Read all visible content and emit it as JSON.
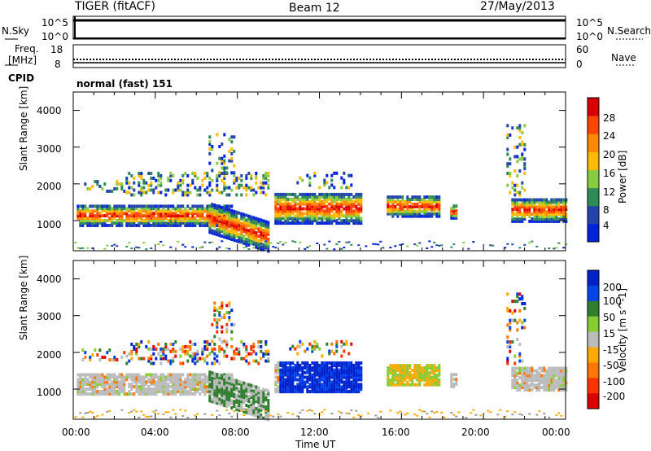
{
  "header": {
    "title": "TIGER (fitACF)",
    "beam": "Beam 12",
    "date": "27/May/2013"
  },
  "top_panels": {
    "nsky": {
      "label": "N.Sky",
      "ticks": [
        "10^5",
        "10^0"
      ],
      "right_label": "N.Search",
      "right_ticks": [
        "10^5",
        "10^0"
      ]
    },
    "freq": {
      "label_line1": "Freq.",
      "label_line2": "[MHz]",
      "ticks": [
        "18",
        "8"
      ],
      "right_label": "Nave",
      "right_ticks": [
        "60",
        "0"
      ]
    },
    "cpid": {
      "label": "CPID",
      "value": "normal (fast) 151"
    }
  },
  "colors": {
    "power": [
      "#0022dd",
      "#2244aa",
      "#2e8b57",
      "#88cc44",
      "#ffbb00",
      "#ff8800",
      "#ff4400",
      "#dd0000"
    ],
    "velocity": [
      "#0022cc",
      "#0044ee",
      "#2f7f2f",
      "#88cc33",
      "#bbbbbb",
      "#ffaa00",
      "#ff7700",
      "#ff3300",
      "#dd0000"
    ],
    "ground": "#999999"
  },
  "chart_data": [
    {
      "type": "heatmap",
      "name": "Power",
      "xlabel": "Time UT",
      "ylabel": "Slant Range [km]",
      "x_ticks": [
        "00:00",
        "04:00",
        "08:00",
        "12:00",
        "16:00",
        "20:00",
        "00:00"
      ],
      "xlim": [
        0,
        24
      ],
      "y_ticks": [
        "1000",
        "2000",
        "3000",
        "4000"
      ],
      "y_tick_values": [
        1000,
        2000,
        3000,
        4000
      ],
      "ylim": [
        180,
        4500
      ],
      "colorbar": {
        "label": "Power [dB]",
        "ticks": [
          "28",
          "24",
          "20",
          "16",
          "12",
          "8",
          "4"
        ],
        "tick_values": [
          28,
          24,
          20,
          16,
          12,
          8,
          4
        ],
        "range": [
          0,
          32
        ]
      }
    },
    {
      "type": "heatmap",
      "name": "Velocity",
      "xlabel": "Time UT",
      "ylabel": "Slant Range [km]",
      "x_ticks": [
        "00:00",
        "04:00",
        "08:00",
        "12:00",
        "16:00",
        "20:00",
        "00:00"
      ],
      "xlim": [
        0,
        24
      ],
      "y_ticks": [
        "1000",
        "2000",
        "3000",
        "4000"
      ],
      "y_tick_values": [
        1000,
        2000,
        3000,
        4000
      ],
      "ylim": [
        180,
        4500
      ],
      "colorbar": {
        "label": "Velocity [m s^-1]",
        "ticks": [
          "200",
          "100",
          "50",
          "15",
          "-15",
          "-50",
          "-100",
          "-200"
        ],
        "tick_values": [
          200,
          100,
          50,
          15,
          -15,
          -50,
          -100,
          -200
        ],
        "range": [
          -250,
          250
        ]
      }
    }
  ],
  "time_label": "Time UT"
}
